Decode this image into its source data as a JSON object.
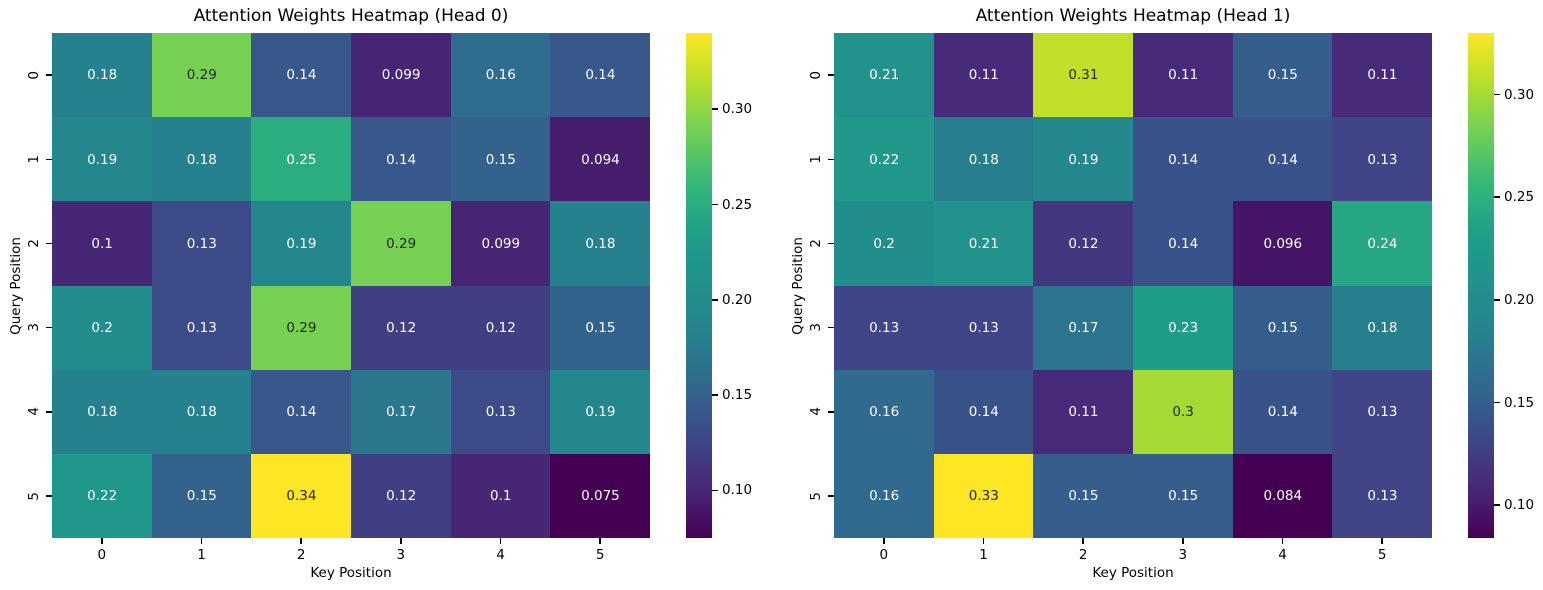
{
  "figure": {
    "background": "#ffffff"
  },
  "colors": {
    "annotation_light": "#ffffff",
    "annotation_dark": "#262626",
    "axis_text": "#000000",
    "tick_mark": "#000000",
    "viridis_stops": [
      "#440154",
      "#482878",
      "#3e4989",
      "#31688e",
      "#26828e",
      "#21918c",
      "#1f9e89",
      "#35b779",
      "#6ece58",
      "#b5de2b",
      "#fde725"
    ]
  },
  "chart_data": [
    {
      "type": "heatmap",
      "title": "Attention Weights Heatmap (Head 0)",
      "xlabel": "Key Position",
      "ylabel": "Query Position",
      "x_tick_labels": [
        "0",
        "1",
        "2",
        "3",
        "4",
        "5"
      ],
      "y_tick_labels": [
        "0",
        "1",
        "2",
        "3",
        "4",
        "5"
      ],
      "colormap": "viridis",
      "vmin": 0.075,
      "vmax": 0.34,
      "annotation_precision": 2,
      "colorbar": {
        "position": "right",
        "ticks": [
          0.1,
          0.15,
          0.2,
          0.25,
          0.3
        ]
      },
      "matrix": [
        [
          0.18,
          0.29,
          0.14,
          0.099,
          0.16,
          0.14
        ],
        [
          0.19,
          0.18,
          0.25,
          0.14,
          0.15,
          0.094
        ],
        [
          0.1,
          0.13,
          0.19,
          0.29,
          0.099,
          0.18
        ],
        [
          0.2,
          0.13,
          0.29,
          0.12,
          0.12,
          0.15
        ],
        [
          0.18,
          0.18,
          0.14,
          0.17,
          0.13,
          0.19
        ],
        [
          0.22,
          0.15,
          0.34,
          0.12,
          0.1,
          0.075
        ]
      ]
    },
    {
      "type": "heatmap",
      "title": "Attention Weights Heatmap (Head 1)",
      "xlabel": "Key Position",
      "ylabel": "Query Position",
      "x_tick_labels": [
        "0",
        "1",
        "2",
        "3",
        "4",
        "5"
      ],
      "y_tick_labels": [
        "0",
        "1",
        "2",
        "3",
        "4",
        "5"
      ],
      "colormap": "viridis",
      "vmin": 0.084,
      "vmax": 0.33,
      "annotation_precision": 2,
      "colorbar": {
        "position": "right",
        "ticks": [
          0.1,
          0.15,
          0.2,
          0.25,
          0.3
        ]
      },
      "matrix": [
        [
          0.21,
          0.11,
          0.31,
          0.11,
          0.15,
          0.11
        ],
        [
          0.22,
          0.18,
          0.19,
          0.14,
          0.14,
          0.13
        ],
        [
          0.2,
          0.21,
          0.12,
          0.14,
          0.096,
          0.24
        ],
        [
          0.13,
          0.13,
          0.17,
          0.23,
          0.15,
          0.18
        ],
        [
          0.16,
          0.14,
          0.11,
          0.3,
          0.14,
          0.13
        ],
        [
          0.16,
          0.33,
          0.15,
          0.15,
          0.084,
          0.13
        ]
      ]
    }
  ]
}
